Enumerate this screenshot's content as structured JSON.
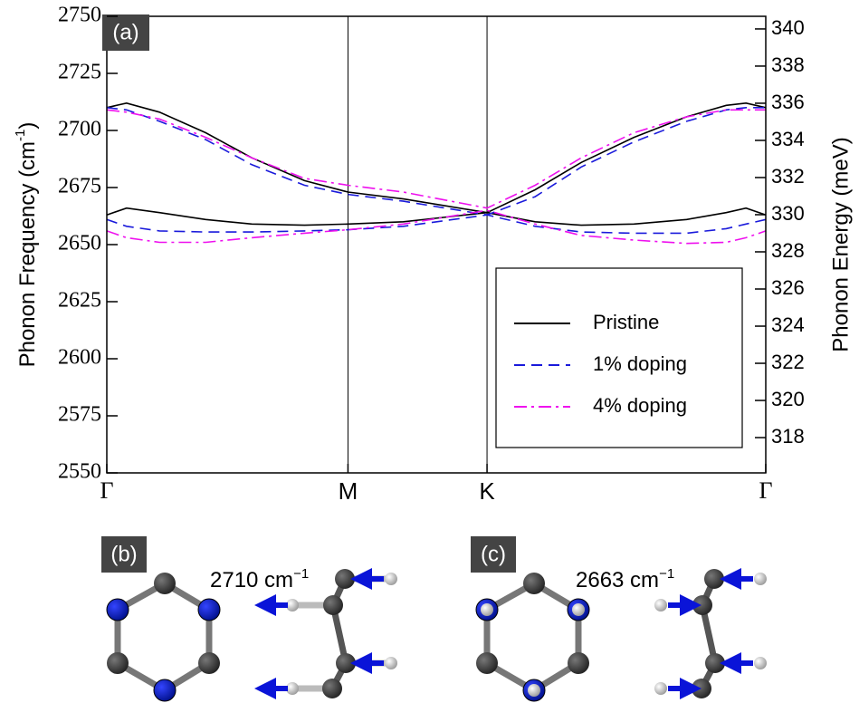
{
  "chart_data": {
    "type": "line",
    "panel_label": "(a)",
    "y_label": "Phonon Frequency (cm",
    "y_label_sup": "-1",
    "y_label_end": ")",
    "y2_label": "Phonon Energy (meV)",
    "x": [
      0,
      0.03,
      0.08,
      0.15,
      0.22,
      0.3,
      0.366,
      0.45,
      0.577,
      0.65,
      0.72,
      0.8,
      0.88,
      0.94,
      0.97,
      1
    ],
    "xlim": [
      0,
      1
    ],
    "xticks": [
      {
        "value": 0,
        "label": "Γ"
      },
      {
        "value": 0.366,
        "label": "M"
      },
      {
        "value": 0.577,
        "label": "K"
      },
      {
        "value": 1,
        "label": "Γ"
      }
    ],
    "ylim": [
      2550,
      2750
    ],
    "yticks": [
      2550,
      2575,
      2600,
      2625,
      2650,
      2675,
      2700,
      2725,
      2750
    ],
    "y2lim": [
      316.1,
      340.68
    ],
    "y2ticks": [
      318,
      320,
      322,
      324,
      326,
      328,
      330,
      332,
      334,
      336,
      338,
      340
    ],
    "series": [
      {
        "name": "Pristine",
        "color": "#000000",
        "dash": "none",
        "values": [
          [
            2710,
            2712,
            2708,
            2699,
            2688,
            2678,
            2673,
            2670,
            2664,
            2674,
            2686,
            2697,
            2706,
            2711,
            2712,
            2710
          ],
          [
            2663,
            2666,
            2664,
            2661,
            2659,
            2658.5,
            2659,
            2660,
            2664,
            2660,
            2658.5,
            2659,
            2661,
            2664,
            2666,
            2663
          ]
        ]
      },
      {
        "name": "1% doping",
        "color": "#1a1adb",
        "dash": "12 7",
        "values": [
          [
            2710,
            2709,
            2704,
            2696,
            2685,
            2676,
            2672,
            2669,
            2663,
            2671,
            2684,
            2695,
            2704,
            2709,
            2710,
            2710
          ],
          [
            2661,
            2658,
            2656,
            2655.5,
            2655.5,
            2656,
            2656.5,
            2658,
            2663,
            2658,
            2655.5,
            2655,
            2655,
            2657,
            2659,
            2661
          ]
        ]
      },
      {
        "name": "4% doping",
        "color": "#ee10ee",
        "dash": "14 5 3 5",
        "values": [
          [
            2709,
            2708,
            2705,
            2697,
            2688,
            2679,
            2676,
            2673,
            2666,
            2676,
            2688,
            2699,
            2706,
            2709,
            2709,
            2709
          ],
          [
            2656,
            2653,
            2651,
            2651,
            2653,
            2655,
            2656.5,
            2659,
            2665,
            2659,
            2654,
            2652,
            2650.5,
            2651,
            2653,
            2656
          ]
        ]
      }
    ],
    "vlines": [
      0.366,
      0.577
    ]
  },
  "diagrams": [
    {
      "label": "(b)",
      "freq": "2710 cm",
      "unit_sup": "−1"
    },
    {
      "label": "(c)",
      "freq": "2663 cm",
      "unit_sup": "−1"
    }
  ]
}
